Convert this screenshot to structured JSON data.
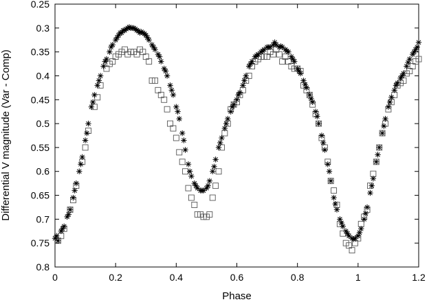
{
  "chart_data": {
    "type": "scatter",
    "xlabel": "Phase",
    "ylabel": "Differential V magnitude (Var - Comp)",
    "xlim": [
      0,
      1.2
    ],
    "ylim": [
      0.25,
      0.8
    ],
    "y_inverted": true,
    "grid": false,
    "xticks": [
      "0",
      "0.2",
      "0.4",
      "0.6",
      "0.8",
      "1",
      "1.2"
    ],
    "yticks": [
      "0.25",
      "0.3",
      "0.35",
      "0.4",
      "0.45",
      "0.5",
      "0.55",
      "0.6",
      "0.65",
      "0.7",
      "0.75",
      "0.8"
    ],
    "series": [
      {
        "marker": "star",
        "color": "#000000",
        "points": [
          [
            0.0,
            0.74
          ],
          [
            0.01,
            0.745
          ],
          [
            0.02,
            0.725
          ],
          [
            0.03,
            0.715
          ],
          [
            0.04,
            0.695
          ],
          [
            0.05,
            0.68
          ],
          [
            0.06,
            0.655
          ],
          [
            0.07,
            0.625
          ],
          [
            0.08,
            0.6
          ],
          [
            0.09,
            0.57
          ],
          [
            0.1,
            0.535
          ],
          [
            0.11,
            0.5
          ],
          [
            0.12,
            0.465
          ],
          [
            0.13,
            0.44
          ],
          [
            0.14,
            0.42
          ],
          [
            0.15,
            0.4
          ],
          [
            0.16,
            0.38
          ],
          [
            0.17,
            0.365
          ],
          [
            0.18,
            0.35
          ],
          [
            0.19,
            0.335
          ],
          [
            0.2,
            0.325
          ],
          [
            0.21,
            0.315
          ],
          [
            0.22,
            0.31
          ],
          [
            0.23,
            0.305
          ],
          [
            0.24,
            0.3
          ],
          [
            0.25,
            0.3
          ],
          [
            0.26,
            0.3
          ],
          [
            0.27,
            0.305
          ],
          [
            0.28,
            0.31
          ],
          [
            0.29,
            0.31
          ],
          [
            0.3,
            0.315
          ],
          [
            0.31,
            0.325
          ],
          [
            0.32,
            0.335
          ],
          [
            0.33,
            0.345
          ],
          [
            0.34,
            0.355
          ],
          [
            0.35,
            0.37
          ],
          [
            0.36,
            0.385
          ],
          [
            0.37,
            0.4
          ],
          [
            0.38,
            0.42
          ],
          [
            0.39,
            0.44
          ],
          [
            0.4,
            0.465
          ],
          [
            0.41,
            0.49
          ],
          [
            0.42,
            0.52
          ],
          [
            0.43,
            0.555
          ],
          [
            0.44,
            0.585
          ],
          [
            0.45,
            0.61
          ],
          [
            0.46,
            0.625
          ],
          [
            0.47,
            0.635
          ],
          [
            0.48,
            0.64
          ],
          [
            0.49,
            0.64
          ],
          [
            0.5,
            0.635
          ],
          [
            0.51,
            0.62
          ],
          [
            0.52,
            0.6
          ],
          [
            0.53,
            0.575
          ],
          [
            0.54,
            0.55
          ],
          [
            0.55,
            0.53
          ],
          [
            0.56,
            0.51
          ],
          [
            0.57,
            0.49
          ],
          [
            0.58,
            0.475
          ],
          [
            0.59,
            0.46
          ],
          [
            0.6,
            0.45
          ],
          [
            0.61,
            0.435
          ],
          [
            0.62,
            0.42
          ],
          [
            0.63,
            0.4
          ],
          [
            0.64,
            0.38
          ],
          [
            0.65,
            0.37
          ],
          [
            0.66,
            0.36
          ],
          [
            0.67,
            0.355
          ],
          [
            0.68,
            0.35
          ],
          [
            0.69,
            0.345
          ],
          [
            0.7,
            0.34
          ],
          [
            0.71,
            0.34
          ],
          [
            0.72,
            0.335
          ],
          [
            0.73,
            0.335
          ],
          [
            0.74,
            0.34
          ],
          [
            0.75,
            0.34
          ],
          [
            0.76,
            0.345
          ],
          [
            0.77,
            0.35
          ],
          [
            0.78,
            0.36
          ],
          [
            0.79,
            0.37
          ],
          [
            0.8,
            0.385
          ],
          [
            0.81,
            0.395
          ],
          [
            0.82,
            0.41
          ],
          [
            0.83,
            0.425
          ],
          [
            0.84,
            0.44
          ],
          [
            0.85,
            0.455
          ],
          [
            0.86,
            0.475
          ],
          [
            0.87,
            0.5
          ],
          [
            0.88,
            0.525
          ],
          [
            0.89,
            0.555
          ],
          [
            0.9,
            0.585
          ],
          [
            0.91,
            0.62
          ],
          [
            0.92,
            0.655
          ],
          [
            0.93,
            0.68
          ],
          [
            0.94,
            0.7
          ],
          [
            0.95,
            0.715
          ],
          [
            0.96,
            0.725
          ],
          [
            0.97,
            0.735
          ],
          [
            0.98,
            0.74
          ],
          [
            0.99,
            0.74
          ],
          [
            1.0,
            0.735
          ],
          [
            1.01,
            0.72
          ],
          [
            1.02,
            0.7
          ],
          [
            1.03,
            0.675
          ],
          [
            1.04,
            0.645
          ],
          [
            1.05,
            0.615
          ],
          [
            1.06,
            0.58
          ],
          [
            1.07,
            0.55
          ],
          [
            1.08,
            0.52
          ],
          [
            1.09,
            0.49
          ],
          [
            1.1,
            0.465
          ],
          [
            1.11,
            0.445
          ],
          [
            1.12,
            0.43
          ],
          [
            1.13,
            0.415
          ],
          [
            1.14,
            0.405
          ],
          [
            1.15,
            0.395
          ],
          [
            1.16,
            0.38
          ],
          [
            1.17,
            0.365
          ],
          [
            1.18,
            0.355
          ],
          [
            1.19,
            0.345
          ],
          [
            1.2,
            0.33
          ],
          [
            0.005,
            0.735
          ],
          [
            0.025,
            0.72
          ],
          [
            0.045,
            0.69
          ],
          [
            0.065,
            0.64
          ],
          [
            0.085,
            0.585
          ],
          [
            0.105,
            0.52
          ],
          [
            0.125,
            0.455
          ],
          [
            0.145,
            0.41
          ],
          [
            0.165,
            0.37
          ],
          [
            0.185,
            0.34
          ],
          [
            0.205,
            0.32
          ],
          [
            0.215,
            0.31
          ],
          [
            0.225,
            0.305
          ],
          [
            0.235,
            0.302
          ],
          [
            0.245,
            0.298
          ],
          [
            0.255,
            0.3
          ],
          [
            0.265,
            0.302
          ],
          [
            0.275,
            0.306
          ],
          [
            0.285,
            0.308
          ],
          [
            0.295,
            0.312
          ],
          [
            0.305,
            0.32
          ],
          [
            0.325,
            0.34
          ],
          [
            0.345,
            0.36
          ],
          [
            0.365,
            0.39
          ],
          [
            0.385,
            0.43
          ],
          [
            0.405,
            0.475
          ],
          [
            0.425,
            0.535
          ],
          [
            0.445,
            0.6
          ],
          [
            0.465,
            0.63
          ],
          [
            0.485,
            0.64
          ],
          [
            0.505,
            0.63
          ],
          [
            0.525,
            0.59
          ],
          [
            0.545,
            0.54
          ],
          [
            0.565,
            0.5
          ],
          [
            0.585,
            0.465
          ],
          [
            0.605,
            0.44
          ],
          [
            0.625,
            0.41
          ],
          [
            0.645,
            0.375
          ],
          [
            0.665,
            0.358
          ],
          [
            0.685,
            0.348
          ],
          [
            0.705,
            0.34
          ],
          [
            0.725,
            0.33
          ],
          [
            0.745,
            0.338
          ],
          [
            0.765,
            0.348
          ],
          [
            0.785,
            0.365
          ],
          [
            0.805,
            0.39
          ],
          [
            0.825,
            0.418
          ],
          [
            0.845,
            0.448
          ],
          [
            0.865,
            0.485
          ],
          [
            0.885,
            0.54
          ],
          [
            0.905,
            0.6
          ],
          [
            0.925,
            0.668
          ],
          [
            0.945,
            0.708
          ],
          [
            0.965,
            0.73
          ],
          [
            0.985,
            0.742
          ],
          [
            1.005,
            0.728
          ],
          [
            1.025,
            0.688
          ],
          [
            1.045,
            0.63
          ],
          [
            1.065,
            0.565
          ],
          [
            1.085,
            0.505
          ],
          [
            1.105,
            0.455
          ],
          [
            1.125,
            0.42
          ],
          [
            1.145,
            0.4
          ],
          [
            1.165,
            0.372
          ],
          [
            1.185,
            0.35
          ],
          [
            1.195,
            0.34
          ]
        ]
      },
      {
        "marker": "square",
        "color": "#555555",
        "points": [
          [
            0.01,
            0.745
          ],
          [
            0.03,
            0.72
          ],
          [
            0.05,
            0.68
          ],
          [
            0.07,
            0.63
          ],
          [
            0.09,
            0.58
          ],
          [
            0.11,
            0.515
          ],
          [
            0.13,
            0.465
          ],
          [
            0.15,
            0.42
          ],
          [
            0.17,
            0.385
          ],
          [
            0.19,
            0.37
          ],
          [
            0.21,
            0.355
          ],
          [
            0.22,
            0.35
          ],
          [
            0.24,
            0.355
          ],
          [
            0.26,
            0.35
          ],
          [
            0.28,
            0.345
          ],
          [
            0.3,
            0.36
          ],
          [
            0.31,
            0.37
          ],
          [
            0.32,
            0.41
          ],
          [
            0.34,
            0.43
          ],
          [
            0.35,
            0.44
          ],
          [
            0.37,
            0.47
          ],
          [
            0.38,
            0.5
          ],
          [
            0.4,
            0.53
          ],
          [
            0.41,
            0.56
          ],
          [
            0.43,
            0.6
          ],
          [
            0.44,
            0.635
          ],
          [
            0.46,
            0.67
          ],
          [
            0.47,
            0.69
          ],
          [
            0.49,
            0.695
          ],
          [
            0.51,
            0.69
          ],
          [
            0.52,
            0.655
          ],
          [
            0.54,
            0.6
          ],
          [
            0.55,
            0.55
          ],
          [
            0.57,
            0.5
          ],
          [
            0.58,
            0.47
          ],
          [
            0.6,
            0.455
          ],
          [
            0.62,
            0.43
          ],
          [
            0.63,
            0.41
          ],
          [
            0.65,
            0.38
          ],
          [
            0.66,
            0.37
          ],
          [
            0.68,
            0.36
          ],
          [
            0.7,
            0.36
          ],
          [
            0.72,
            0.355
          ],
          [
            0.73,
            0.345
          ],
          [
            0.75,
            0.37
          ],
          [
            0.76,
            0.36
          ],
          [
            0.78,
            0.38
          ],
          [
            0.79,
            0.385
          ],
          [
            0.81,
            0.39
          ],
          [
            0.82,
            0.42
          ],
          [
            0.84,
            0.44
          ],
          [
            0.85,
            0.46
          ],
          [
            0.87,
            0.5
          ],
          [
            0.88,
            0.53
          ],
          [
            0.9,
            0.58
          ],
          [
            0.91,
            0.62
          ],
          [
            0.93,
            0.67
          ],
          [
            0.94,
            0.71
          ],
          [
            0.96,
            0.75
          ],
          [
            0.98,
            0.765
          ],
          [
            1.0,
            0.74
          ],
          [
            1.01,
            0.71
          ],
          [
            1.03,
            0.68
          ],
          [
            1.04,
            0.63
          ],
          [
            1.06,
            0.58
          ],
          [
            1.07,
            0.55
          ],
          [
            1.09,
            0.5
          ],
          [
            1.1,
            0.47
          ],
          [
            1.12,
            0.44
          ],
          [
            1.13,
            0.42
          ],
          [
            1.15,
            0.41
          ],
          [
            1.16,
            0.395
          ],
          [
            1.18,
            0.38
          ],
          [
            1.2,
            0.365
          ],
          [
            0.02,
            0.735
          ],
          [
            0.06,
            0.66
          ],
          [
            0.1,
            0.55
          ],
          [
            0.14,
            0.445
          ],
          [
            0.18,
            0.375
          ],
          [
            0.2,
            0.36
          ],
          [
            0.23,
            0.345
          ],
          [
            0.25,
            0.35
          ],
          [
            0.27,
            0.355
          ],
          [
            0.29,
            0.35
          ],
          [
            0.33,
            0.41
          ],
          [
            0.36,
            0.45
          ],
          [
            0.39,
            0.51
          ],
          [
            0.42,
            0.58
          ],
          [
            0.45,
            0.655
          ],
          [
            0.48,
            0.69
          ],
          [
            0.5,
            0.695
          ],
          [
            0.53,
            0.63
          ],
          [
            0.56,
            0.52
          ],
          [
            0.59,
            0.46
          ],
          [
            0.61,
            0.44
          ],
          [
            0.64,
            0.4
          ],
          [
            0.67,
            0.365
          ],
          [
            0.69,
            0.36
          ],
          [
            0.71,
            0.35
          ],
          [
            0.74,
            0.355
          ],
          [
            0.77,
            0.37
          ],
          [
            0.8,
            0.385
          ],
          [
            0.83,
            0.43
          ],
          [
            0.86,
            0.48
          ],
          [
            0.89,
            0.55
          ],
          [
            0.92,
            0.64
          ],
          [
            0.95,
            0.73
          ],
          [
            0.97,
            0.755
          ],
          [
            0.99,
            0.75
          ],
          [
            1.02,
            0.695
          ],
          [
            1.05,
            0.605
          ],
          [
            1.08,
            0.52
          ],
          [
            1.11,
            0.455
          ],
          [
            1.14,
            0.415
          ],
          [
            1.17,
            0.39
          ],
          [
            1.19,
            0.37
          ]
        ]
      }
    ]
  }
}
